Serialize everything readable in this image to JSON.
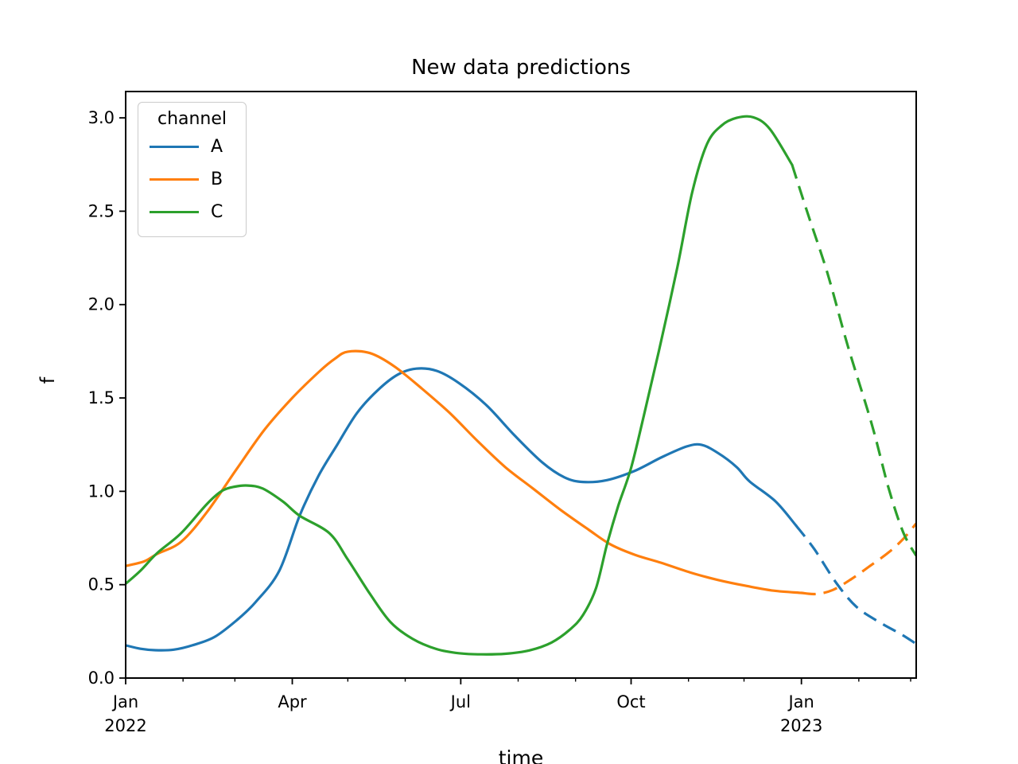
{
  "title": "New data predictions",
  "axes": {
    "xlabel": "time",
    "ylabel": "f"
  },
  "legend": {
    "title": "channel",
    "items": [
      {
        "label": "A",
        "color": "#1f77b4"
      },
      {
        "label": "B",
        "color": "#ff7f0e"
      },
      {
        "label": "C",
        "color": "#2ca02c"
      }
    ]
  },
  "chart_data": {
    "type": "line",
    "title": "New data predictions",
    "xlabel": "time",
    "ylabel": "f",
    "x_unit": "days since 2022-01-01",
    "xlim": [
      0,
      427
    ],
    "ylim": [
      0,
      3.141
    ],
    "grid": false,
    "legend_position": "upper left",
    "line_style_note": "solid = observed, dashed = prediction",
    "x_major_ticks": [
      {
        "day": 0,
        "label": "Jan",
        "year": "2022"
      },
      {
        "day": 90,
        "label": "Apr",
        "year": ""
      },
      {
        "day": 181,
        "label": "Jul",
        "year": ""
      },
      {
        "day": 273,
        "label": "Oct",
        "year": ""
      },
      {
        "day": 365,
        "label": "Jan",
        "year": "2023"
      }
    ],
    "x_minor_ticks": [
      31,
      59,
      120,
      151,
      212,
      243,
      304,
      334,
      396,
      424
    ],
    "y_ticks": [
      {
        "value": 0.0,
        "label": "0.0"
      },
      {
        "value": 0.5,
        "label": "0.5"
      },
      {
        "value": 1.0,
        "label": "1.0"
      },
      {
        "value": 1.5,
        "label": "1.5"
      },
      {
        "value": 2.0,
        "label": "2.0"
      },
      {
        "value": 2.5,
        "label": "2.5"
      },
      {
        "value": 3.0,
        "label": "3.0"
      }
    ],
    "series": [
      {
        "name": "A",
        "color": "#1f77b4",
        "solid": [
          [
            0,
            0.175
          ],
          [
            8,
            0.157
          ],
          [
            16,
            0.149
          ],
          [
            26,
            0.152
          ],
          [
            36,
            0.175
          ],
          [
            48,
            0.22
          ],
          [
            60,
            0.31
          ],
          [
            70,
            0.405
          ],
          [
            83,
            0.575
          ],
          [
            94,
            0.87
          ],
          [
            104,
            1.08
          ],
          [
            114,
            1.245
          ],
          [
            125,
            1.42
          ],
          [
            136,
            1.54
          ],
          [
            147,
            1.625
          ],
          [
            157,
            1.657
          ],
          [
            168,
            1.645
          ],
          [
            180,
            1.58
          ],
          [
            195,
            1.46
          ],
          [
            210,
            1.3
          ],
          [
            225,
            1.155
          ],
          [
            237,
            1.075
          ],
          [
            247,
            1.05
          ],
          [
            260,
            1.06
          ],
          [
            275,
            1.11
          ],
          [
            290,
            1.185
          ],
          [
            303,
            1.24
          ],
          [
            311,
            1.249
          ],
          [
            320,
            1.205
          ],
          [
            330,
            1.13
          ],
          [
            337,
            1.053
          ],
          [
            351,
            0.946
          ],
          [
            362,
            0.818
          ]
        ],
        "dashed": [
          [
            362,
            0.818
          ],
          [
            372,
            0.69
          ],
          [
            384,
            0.507
          ],
          [
            395,
            0.379
          ],
          [
            408,
            0.294
          ],
          [
            419,
            0.234
          ],
          [
            427,
            0.183
          ]
        ]
      },
      {
        "name": "B",
        "color": "#ff7f0e",
        "solid": [
          [
            0,
            0.6
          ],
          [
            10,
            0.625
          ],
          [
            17,
            0.665
          ],
          [
            30,
            0.73
          ],
          [
            44,
            0.89
          ],
          [
            60,
            1.12
          ],
          [
            75,
            1.33
          ],
          [
            90,
            1.5
          ],
          [
            105,
            1.645
          ],
          [
            113,
            1.71
          ],
          [
            120,
            1.748
          ],
          [
            132,
            1.74
          ],
          [
            145,
            1.67
          ],
          [
            160,
            1.55
          ],
          [
            175,
            1.42
          ],
          [
            190,
            1.27
          ],
          [
            205,
            1.13
          ],
          [
            220,
            1.015
          ],
          [
            235,
            0.9
          ],
          [
            250,
            0.795
          ],
          [
            262,
            0.715
          ],
          [
            275,
            0.66
          ],
          [
            289,
            0.618
          ],
          [
            305,
            0.565
          ],
          [
            320,
            0.525
          ],
          [
            335,
            0.494
          ],
          [
            350,
            0.468
          ],
          [
            365,
            0.456
          ]
        ],
        "dashed": [
          [
            365,
            0.456
          ],
          [
            373,
            0.45
          ],
          [
            382,
            0.472
          ],
          [
            392,
            0.53
          ],
          [
            402,
            0.6
          ],
          [
            412,
            0.672
          ],
          [
            420,
            0.745
          ],
          [
            427,
            0.828
          ]
        ]
      },
      {
        "name": "C",
        "color": "#2ca02c",
        "solid": [
          [
            0,
            0.505
          ],
          [
            8,
            0.575
          ],
          [
            17,
            0.669
          ],
          [
            30,
            0.776
          ],
          [
            44,
            0.933
          ],
          [
            52,
            1.002
          ],
          [
            59,
            1.025
          ],
          [
            66,
            1.031
          ],
          [
            74,
            1.015
          ],
          [
            85,
            0.945
          ],
          [
            94,
            0.869
          ],
          [
            110,
            0.776
          ],
          [
            120,
            0.635
          ],
          [
            132,
            0.45
          ],
          [
            143,
            0.3
          ],
          [
            155,
            0.21
          ],
          [
            168,
            0.155
          ],
          [
            180,
            0.133
          ],
          [
            192,
            0.127
          ],
          [
            205,
            0.13
          ],
          [
            218,
            0.148
          ],
          [
            230,
            0.19
          ],
          [
            240,
            0.26
          ],
          [
            247,
            0.337
          ],
          [
            254,
            0.48
          ],
          [
            260,
            0.716
          ],
          [
            266,
            0.92
          ],
          [
            273,
            1.125
          ],
          [
            280,
            1.41
          ],
          [
            288,
            1.75
          ],
          [
            298,
            2.2
          ],
          [
            306,
            2.6
          ],
          [
            314,
            2.86
          ],
          [
            322,
            2.96
          ],
          [
            330,
            3.0
          ],
          [
            339,
            3.003
          ],
          [
            348,
            2.94
          ],
          [
            360,
            2.748
          ]
        ],
        "dashed": [
          [
            360,
            2.748
          ],
          [
            368,
            2.5
          ],
          [
            379,
            2.17
          ],
          [
            390,
            1.78
          ],
          [
            403,
            1.36
          ],
          [
            412,
            1.02
          ],
          [
            420,
            0.78
          ],
          [
            427,
            0.655
          ]
        ]
      }
    ],
    "style": {
      "linewidth": 3.2,
      "dash_pattern": [
        18,
        10
      ],
      "axis_color": "#000000"
    }
  }
}
